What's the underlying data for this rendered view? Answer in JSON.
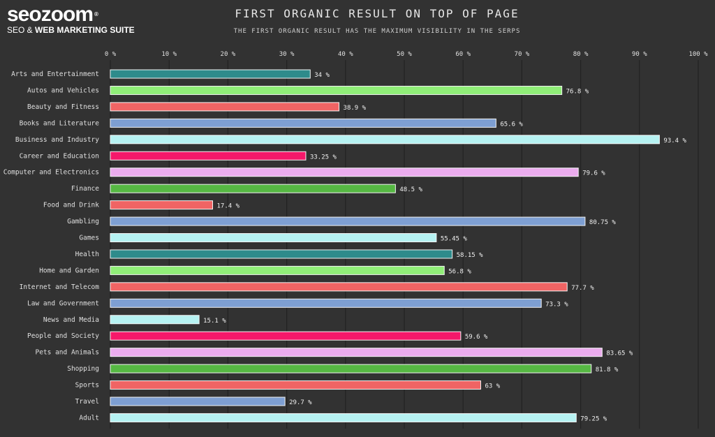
{
  "logo": {
    "word": "seozoom",
    "registered": "®",
    "sub_plain": "SEO & ",
    "sub_bold": "WEB MARKETING SUITE"
  },
  "chart_data": {
    "type": "bar",
    "orientation": "horizontal",
    "title": "FIRST ORGANIC RESULT ON TOP OF PAGE",
    "subtitle": "THE FIRST ORGANIC RESULT HAS THE MAXIMUM VISIBILITY IN THE SERPS",
    "xlim": [
      0,
      100
    ],
    "x_ticks": [
      0,
      10,
      20,
      30,
      40,
      50,
      60,
      70,
      80,
      90,
      100
    ],
    "x_tick_labels": [
      "0 %",
      "10 %",
      "20 %",
      "30 %",
      "40 %",
      "50 %",
      "60 %",
      "70 %",
      "80 %",
      "90 %",
      "100 %"
    ],
    "grid": "vertical",
    "categories": [
      "Arts and Entertainment",
      "Autos and Vehicles",
      "Beauty and Fitness",
      "Books and Literature",
      "Business and Industry",
      "Career and Education",
      "Computer and Electronics",
      "Finance",
      "Food and Drink",
      "Gambling",
      "Games",
      "Health",
      "Home and Garden",
      "Internet and Telecom",
      "Law and Government",
      "News and Media",
      "People and Society",
      "Pets and Animals",
      "Shopping",
      "Sports",
      "Travel",
      "Adult"
    ],
    "values": [
      34,
      76.8,
      38.9,
      65.6,
      93.4,
      33.25,
      79.6,
      48.5,
      17.4,
      80.75,
      55.45,
      58.15,
      56.8,
      77.7,
      73.3,
      15.1,
      59.6,
      83.65,
      81.8,
      63,
      29.7,
      79.25
    ],
    "value_labels": [
      "34 %",
      "76.8 %",
      "38.9 %",
      "65.6 %",
      "93.4 %",
      "33.25 %",
      "79.6 %",
      "48.5 %",
      "17.4 %",
      "80.75 %",
      "55.45 %",
      "58.15 %",
      "56.8 %",
      "77.7 %",
      "73.3 %",
      "15.1 %",
      "59.6 %",
      "83.65 %",
      "81.8 %",
      "63 %",
      "29.7 %",
      "79.25 %"
    ],
    "bar_colors": [
      "#2e8b8b",
      "#90ee78",
      "#f06464",
      "#7e9fd2",
      "#b6f2f2",
      "#f5186a",
      "#ebacee",
      "#56b843",
      "#f06464",
      "#7e9fd2",
      "#b6f2f2",
      "#2e8b8b",
      "#90ee78",
      "#f06464",
      "#7e9fd2",
      "#b6f2f2",
      "#f5186a",
      "#ebacee",
      "#56b843",
      "#f06464",
      "#7e9fd2",
      "#b6f2f2"
    ]
  }
}
